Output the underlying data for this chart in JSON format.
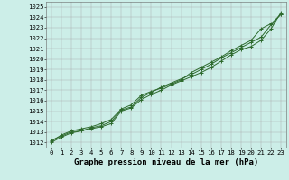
{
  "x": [
    0,
    1,
    2,
    3,
    4,
    5,
    6,
    7,
    8,
    9,
    10,
    11,
    12,
    13,
    14,
    15,
    16,
    17,
    18,
    19,
    20,
    21,
    22,
    23
  ],
  "line1": [
    1012.2,
    1012.6,
    1013.0,
    1013.1,
    1013.4,
    1013.6,
    1014.0,
    1015.1,
    1015.4,
    1016.3,
    1016.8,
    1017.3,
    1017.7,
    1018.1,
    1018.5,
    1019.0,
    1019.5,
    1020.1,
    1020.6,
    1021.1,
    1021.6,
    1022.1,
    1023.3,
    1024.3
  ],
  "line2": [
    1012.0,
    1012.5,
    1012.9,
    1013.1,
    1013.3,
    1013.5,
    1013.8,
    1015.0,
    1015.3,
    1016.1,
    1016.6,
    1017.0,
    1017.5,
    1017.9,
    1018.3,
    1018.7,
    1019.2,
    1019.8,
    1020.4,
    1020.9,
    1021.2,
    1021.8,
    1022.9,
    1024.5
  ],
  "line3": [
    1012.1,
    1012.7,
    1013.1,
    1013.3,
    1013.5,
    1013.8,
    1014.2,
    1015.2,
    1015.6,
    1016.5,
    1016.9,
    1017.2,
    1017.6,
    1018.0,
    1018.7,
    1019.2,
    1019.7,
    1020.2,
    1020.8,
    1021.3,
    1021.8,
    1022.9,
    1023.4,
    1024.3
  ],
  "line_color": "#2d6a2d",
  "marker": "+",
  "markersize": 3,
  "linewidth": 0.7,
  "bg_color": "#cceee8",
  "grid_color": "#aaaaaa",
  "ylabel_vals": [
    1012,
    1013,
    1014,
    1015,
    1016,
    1017,
    1018,
    1019,
    1020,
    1021,
    1022,
    1023,
    1024,
    1025
  ],
  "xlabel_vals": [
    0,
    1,
    2,
    3,
    4,
    5,
    6,
    7,
    8,
    9,
    10,
    11,
    12,
    13,
    14,
    15,
    16,
    17,
    18,
    19,
    20,
    21,
    22,
    23
  ],
  "title": "Graphe pression niveau de la mer (hPa)",
  "title_fontsize": 6.5,
  "tick_fontsize": 5.2,
  "ylim": [
    1011.5,
    1025.5
  ],
  "xlim": [
    -0.5,
    23.5
  ]
}
